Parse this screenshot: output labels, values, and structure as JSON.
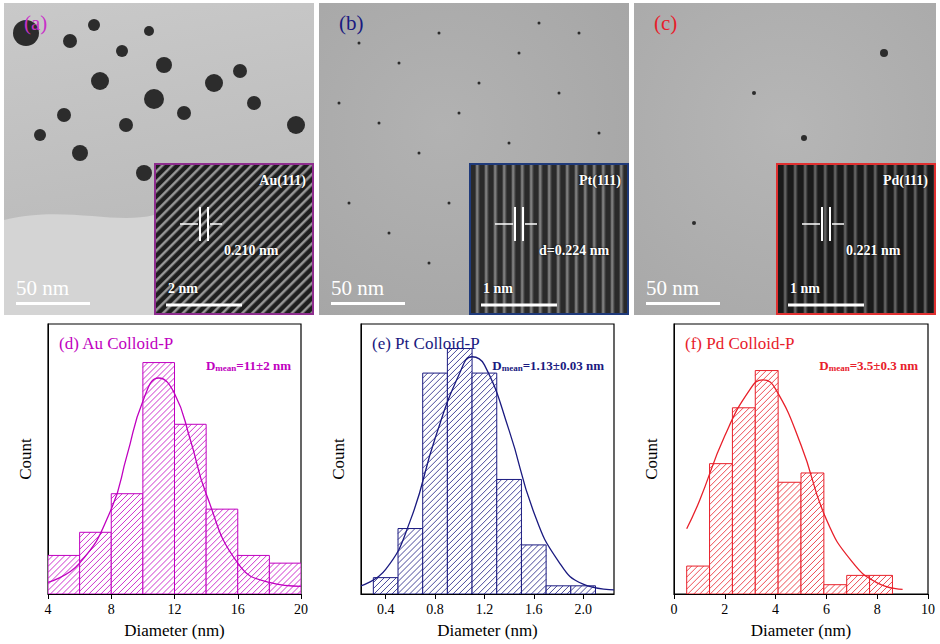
{
  "panels": [
    {
      "letter": "(a)",
      "letter_color": "#c832c8",
      "scale_bar": "50 nm",
      "inset": {
        "plane": "Au(111)",
        "spacing": "0.210 nm",
        "scale_bar": "2 nm",
        "border_color": "#8e2d8e"
      }
    },
    {
      "letter": "(b)",
      "letter_color": "#1a1a80",
      "scale_bar": "50 nm",
      "inset": {
        "plane": "Pt(111)",
        "spacing": "d=0.224 nm",
        "scale_bar": "1 nm",
        "border_color": "#1f3a7a"
      }
    },
    {
      "letter": "(c)",
      "letter_color": "#e8202a",
      "scale_bar": "50 nm",
      "inset": {
        "plane": "Pd(111)",
        "spacing": "0.221 nm",
        "scale_bar": "1 nm",
        "border_color": "#e03030"
      }
    }
  ],
  "chart_data": [
    {
      "type": "histogram",
      "title": "(d) Au Colloid-P",
      "annotation": [
        "D",
        "mean",
        "=11±2 nm"
      ],
      "x_label": "Diameter (nm)",
      "y_label": "Count",
      "color": "#c000c0",
      "bins": [
        4,
        6,
        8,
        10,
        12,
        14,
        16,
        18,
        20
      ],
      "counts": [
        5,
        8,
        13,
        30,
        22,
        11,
        5,
        4
      ],
      "fit": {
        "x": [
          4,
          6,
          8,
          9,
          10,
          11,
          12,
          13,
          14,
          16,
          18,
          20
        ],
        "y": [
          1.5,
          4,
          11,
          18,
          25,
          28,
          26,
          20,
          13,
          4,
          1.5,
          1
        ]
      },
      "xlim": [
        4,
        20
      ],
      "xticks": [
        4,
        8,
        12,
        16,
        20
      ],
      "ylim": [
        0,
        35
      ],
      "tick_labels": "x"
    },
    {
      "type": "histogram",
      "title": "(e) Pt Colloid-P",
      "annotation": [
        "D",
        "mean",
        "=1.13±0.03 nm"
      ],
      "x_label": "Diameter (nm)",
      "y_label": "Count",
      "color": "#1a1a80",
      "bins": [
        0.3,
        0.5,
        0.7,
        0.9,
        1.1,
        1.3,
        1.5,
        1.7,
        1.9,
        2.1
      ],
      "counts": [
        2,
        8,
        27,
        30,
        27,
        14,
        6,
        1,
        1
      ],
      "fit": {
        "x": [
          0.2,
          0.4,
          0.6,
          0.8,
          1.0,
          1.1,
          1.2,
          1.4,
          1.6,
          1.8,
          2.0,
          2.25
        ],
        "y": [
          1,
          3,
          9,
          19,
          27,
          29,
          28,
          20,
          10,
          4,
          1.2,
          0.5
        ]
      },
      "xlim": [
        0.2,
        2.25
      ],
      "xticks": [
        0.4,
        0.8,
        1.2,
        1.6,
        {
          "value": 2,
          "label": "2.0"
        }
      ],
      "ylim": [
        0,
        33
      ],
      "tick_labels": "x"
    },
    {
      "type": "histogram",
      "title": "(f) Pd Colloid-P",
      "annotation": [
        "D",
        "mean",
        "=3.5±0.3 nm"
      ],
      "x_label": "Diameter (nm)",
      "y_label": "Count",
      "color": "#e8202a",
      "bins": [
        0.5,
        1.4,
        2.3,
        3.2,
        4.1,
        5.0,
        5.9,
        6.8,
        7.7,
        8.6
      ],
      "counts": [
        3,
        14,
        20,
        24,
        12,
        13,
        1,
        2,
        2
      ],
      "fit": {
        "x": [
          0.5,
          1,
          2,
          3,
          3.5,
          4,
          5,
          6,
          7,
          8,
          9
        ],
        "y": [
          7,
          10,
          17,
          22,
          23,
          22,
          16,
          8,
          3.5,
          1.2,
          0.5
        ]
      },
      "xlim": [
        0,
        10
      ],
      "xticks": [
        0,
        2,
        4,
        6,
        8,
        10
      ],
      "ylim": [
        0,
        29
      ],
      "tick_labels": "x"
    }
  ]
}
